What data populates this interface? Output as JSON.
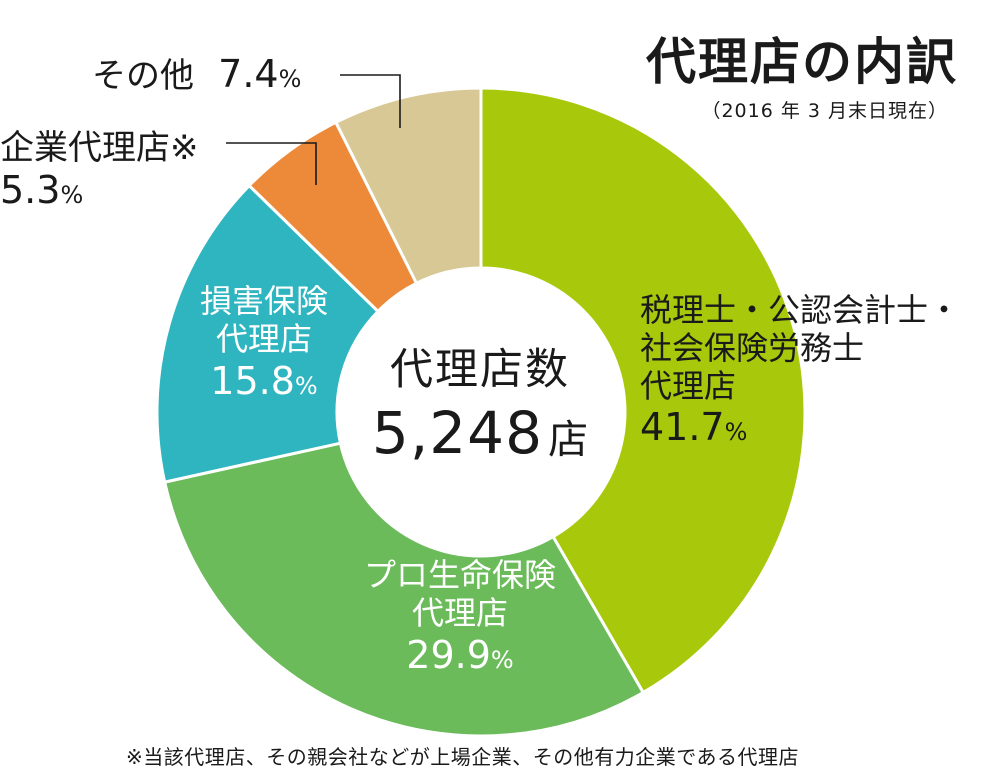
{
  "title": "代理店の内訳",
  "subtitle": "（2016 年 3 月末日現在）",
  "center": {
    "label": "代理店数",
    "value": "5,248",
    "unit": "店"
  },
  "footnote": "※当該代理店、その親会社などが上場企業、その他有力企業である代理店",
  "chart_data": {
    "type": "pie",
    "title": "代理店の内訳",
    "categories": [
      "税理士・公認会計士・社会保険労務士代理店",
      "プロ生命保険代理店",
      "損害保険代理店",
      "企業代理店※",
      "その他"
    ],
    "values": [
      41.7,
      29.9,
      15.8,
      5.3,
      7.4
    ],
    "unit": "%",
    "total_label": "代理店数 5,248 店",
    "colors": [
      "#a8c80b",
      "#6bbb5b",
      "#2eb5bf",
      "#ed8a3a",
      "#d8c896"
    ]
  },
  "labels": {
    "s0": {
      "lines": [
        "税理士・公認会計士・",
        "社会保険労務士",
        "代理店"
      ],
      "pct": "41.7",
      "sign": "%"
    },
    "s1": {
      "lines": [
        "プロ生命保険",
        "代理店"
      ],
      "pct": "29.9",
      "sign": "%"
    },
    "s2": {
      "lines": [
        "損害保険",
        "代理店"
      ],
      "pct": "15.8",
      "sign": "%"
    },
    "s3": {
      "lines": [
        "企業代理店※"
      ],
      "pct": "5.3",
      "sign": "%"
    },
    "s4": {
      "lines": [
        "その他"
      ],
      "pct": "7.4",
      "sign": "%"
    }
  }
}
